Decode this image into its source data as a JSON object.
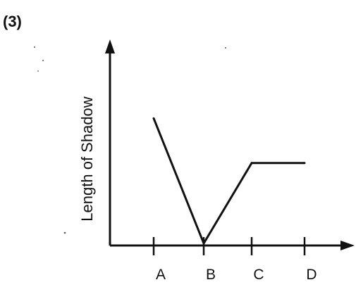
{
  "figure_label": "(3)",
  "chart_data": {
    "type": "line",
    "title": "",
    "xlabel": "",
    "ylabel": "Length of Shadow",
    "categories": [
      "A",
      "B",
      "C",
      "D"
    ],
    "series": [
      {
        "values": [
          0.7,
          0.0,
          0.45,
          0.45
        ]
      }
    ],
    "ylim": [
      0,
      1
    ],
    "grid": false,
    "axis_arrows": true,
    "colors": {
      "line": "#111111",
      "axis": "#111111"
    }
  }
}
